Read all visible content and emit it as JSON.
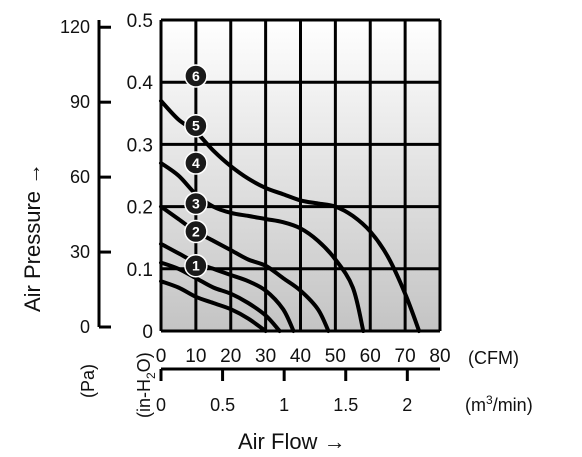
{
  "chart_data": {
    "type": "line",
    "xlabel": "Air Flow",
    "xlabel_arrow": "→",
    "ylabel": "Air Pressure",
    "ylabel_arrow": "→",
    "x_cfm": {
      "range": [
        0,
        80
      ],
      "ticks": [
        0,
        10,
        20,
        30,
        40,
        50,
        60,
        70,
        80
      ],
      "unit": "(CFM)"
    },
    "x_m3min": {
      "ticks": [
        0,
        0.5,
        1,
        1.5,
        2
      ],
      "tick_labels": [
        "0",
        "0.5",
        "1",
        "1.5",
        "2"
      ],
      "unit_base": "(m",
      "unit_sup": "3",
      "unit_tail": "/min)"
    },
    "y_inh2o": {
      "range": [
        0,
        0.5
      ],
      "ticks": [
        0,
        0.1,
        0.2,
        0.3,
        0.4,
        0.5
      ],
      "tick_labels": [
        "0",
        "0.1",
        "0.2",
        "0.3",
        "0.4",
        "0.5"
      ],
      "unit_base": "(in-H",
      "unit_sub": "2",
      "unit_tail": "O)"
    },
    "y_pa": {
      "range": [
        0,
        124.5
      ],
      "ticks": [
        0,
        30,
        60,
        90,
        120
      ],
      "tick_labels": [
        "0",
        "30",
        "60",
        "90",
        "120"
      ],
      "unit": "(Pa)"
    },
    "grid": true,
    "series": [
      {
        "name": "1",
        "label_at": [
          10,
          0.105
        ],
        "points": [
          [
            0,
            0.08
          ],
          [
            5,
            0.07
          ],
          [
            10,
            0.055
          ],
          [
            15,
            0.045
          ],
          [
            20,
            0.035
          ],
          [
            25,
            0.02
          ],
          [
            30,
            0
          ]
        ]
      },
      {
        "name": "2",
        "label_at": [
          10,
          0.16
        ],
        "points": [
          [
            0,
            0.11
          ],
          [
            5,
            0.1
          ],
          [
            10,
            0.085
          ],
          [
            15,
            0.07
          ],
          [
            20,
            0.06
          ],
          [
            25,
            0.045
          ],
          [
            30,
            0.025
          ],
          [
            34,
            0
          ]
        ]
      },
      {
        "name": "3",
        "label_at": [
          10,
          0.205
        ],
        "points": [
          [
            0,
            0.14
          ],
          [
            5,
            0.125
          ],
          [
            10,
            0.11
          ],
          [
            15,
            0.1
          ],
          [
            20,
            0.09
          ],
          [
            25,
            0.08
          ],
          [
            30,
            0.065
          ],
          [
            35,
            0.035
          ],
          [
            38,
            0
          ]
        ]
      },
      {
        "name": "4",
        "label_at": [
          10,
          0.27
        ],
        "points": [
          [
            0,
            0.2
          ],
          [
            5,
            0.18
          ],
          [
            10,
            0.16
          ],
          [
            15,
            0.145
          ],
          [
            20,
            0.13
          ],
          [
            25,
            0.115
          ],
          [
            30,
            0.105
          ],
          [
            35,
            0.085
          ],
          [
            40,
            0.065
          ],
          [
            45,
            0.035
          ],
          [
            48,
            0
          ]
        ]
      },
      {
        "name": "5",
        "label_at": [
          10,
          0.33
        ],
        "points": [
          [
            0,
            0.27
          ],
          [
            5,
            0.25
          ],
          [
            10,
            0.22
          ],
          [
            15,
            0.2
          ],
          [
            20,
            0.19
          ],
          [
            25,
            0.185
          ],
          [
            30,
            0.18
          ],
          [
            35,
            0.175
          ],
          [
            40,
            0.165
          ],
          [
            45,
            0.145
          ],
          [
            50,
            0.115
          ],
          [
            55,
            0.07
          ],
          [
            58,
            0
          ]
        ]
      },
      {
        "name": "6",
        "label_at": [
          10,
          0.41
        ],
        "points": [
          [
            0,
            0.37
          ],
          [
            5,
            0.34
          ],
          [
            10,
            0.32
          ],
          [
            15,
            0.29
          ],
          [
            20,
            0.265
          ],
          [
            25,
            0.245
          ],
          [
            30,
            0.23
          ],
          [
            35,
            0.22
          ],
          [
            40,
            0.21
          ],
          [
            45,
            0.205
          ],
          [
            50,
            0.2
          ],
          [
            55,
            0.185
          ],
          [
            60,
            0.16
          ],
          [
            65,
            0.12
          ],
          [
            70,
            0.06
          ],
          [
            74,
            0
          ]
        ]
      }
    ]
  }
}
